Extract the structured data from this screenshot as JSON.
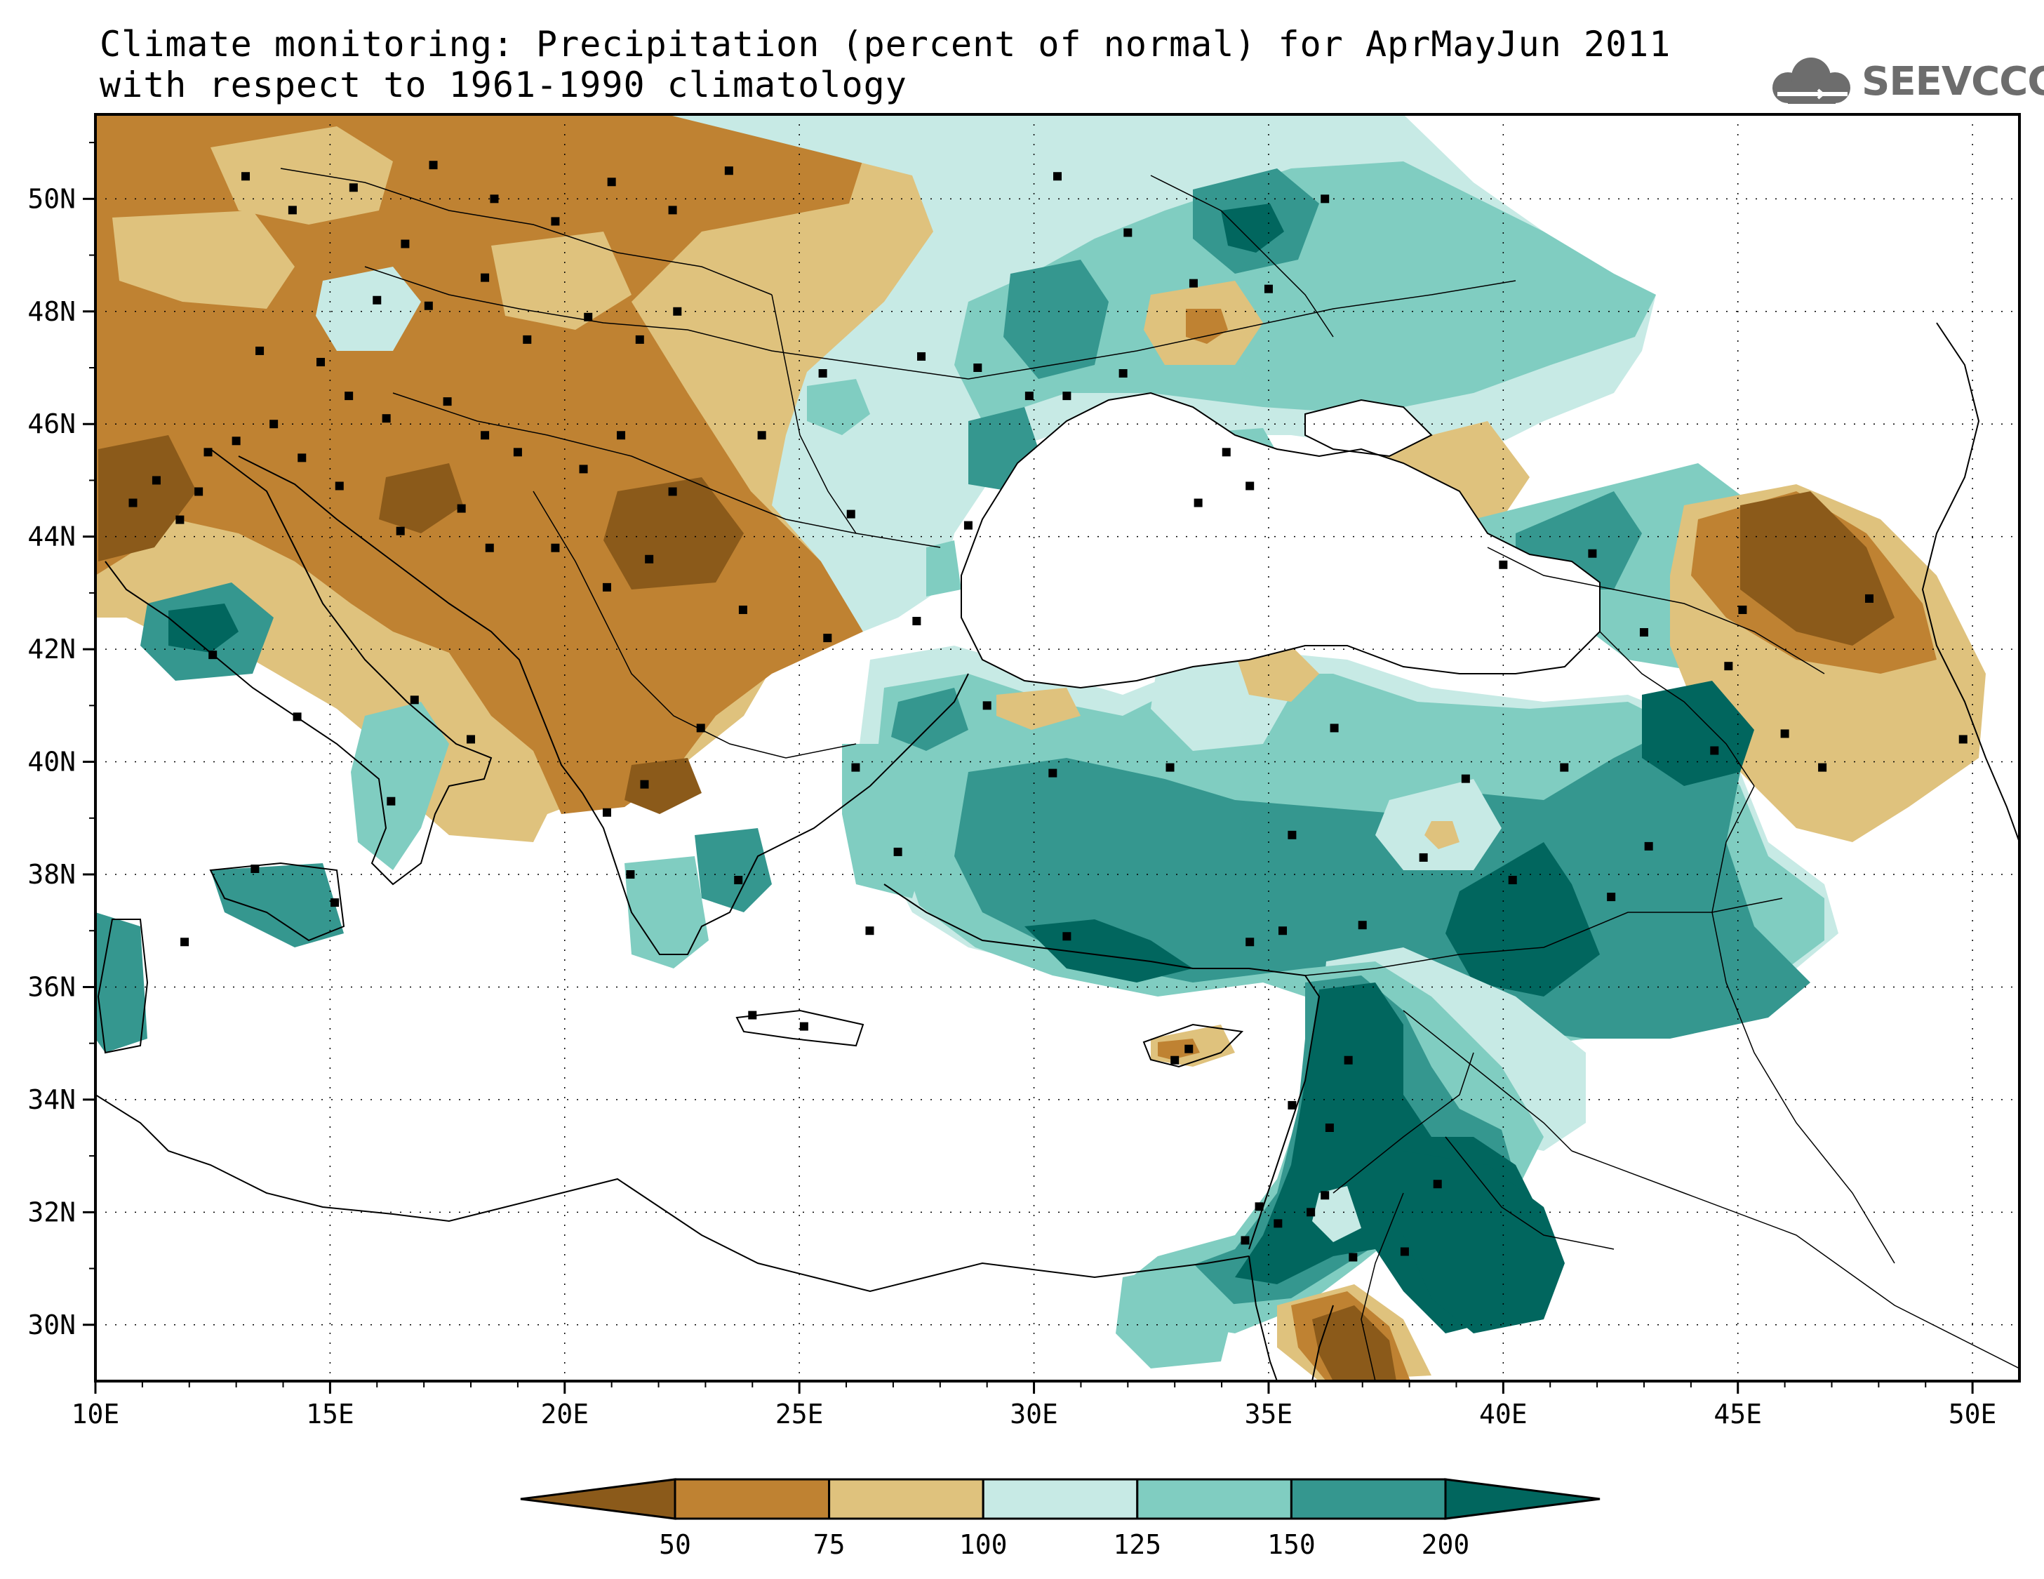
{
  "title": {
    "line1": "Climate monitoring: Precipitation (percent of normal) for AprMayJun 2011",
    "line2": "with respect to 1961-1990 climatology"
  },
  "logo": {
    "text": "SEEVCCC",
    "icon": "cloud-icon"
  },
  "map": {
    "lon_range": [
      10,
      51
    ],
    "lat_range": [
      29,
      51.5
    ],
    "lon_ticks": [
      "10E",
      "15E",
      "20E",
      "25E",
      "30E",
      "35E",
      "40E",
      "45E",
      "50E"
    ],
    "lat_ticks": [
      "30N",
      "32N",
      "34N",
      "36N",
      "38N",
      "40N",
      "42N",
      "44N",
      "46N",
      "48N",
      "50N"
    ],
    "grid": "dotted",
    "colors": {
      "lt50": "#8b5a1a",
      "50_75": "#bf8232",
      "75_100": "#dfc27d",
      "100_125": "#c7eae5",
      "125_150": "#80cdc1",
      "150_200": "#35978f",
      "gt200": "#01665e"
    }
  },
  "colorbar": {
    "labels": [
      "50",
      "75",
      "100",
      "125",
      "150",
      "200"
    ],
    "colors": [
      "#8b5a1a",
      "#bf8232",
      "#dfc27d",
      "#c7eae5",
      "#80cdc1",
      "#35978f",
      "#01665e"
    ]
  }
}
